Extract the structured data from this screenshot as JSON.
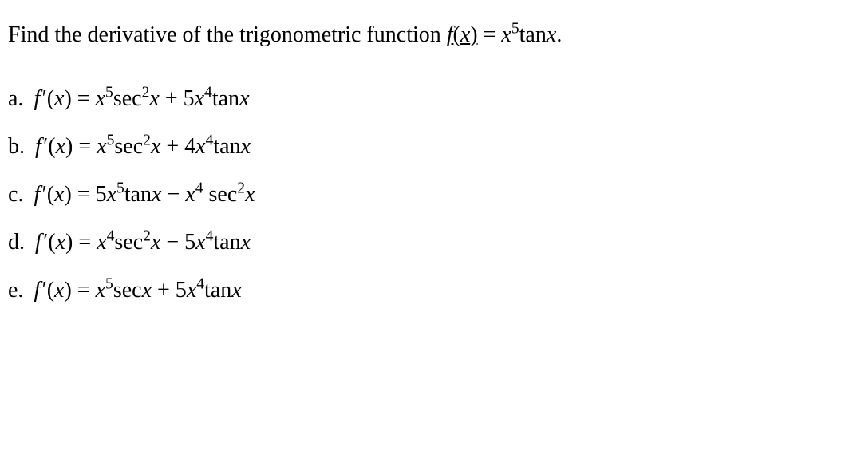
{
  "question": {
    "prefix": "Find the derivative of the trigonometric function ",
    "func_html": "<span class='underline'><span class='math'>f</span>(<span class='math'>x</span>)</span> = <span class='math'>x</span><sup>5</sup>tan<span class='math'>x</span>",
    "suffix": "."
  },
  "options": [
    {
      "label": "a.",
      "expr_html": "<span class='math'>f&#8202;</span>&prime;(<span class='math'>x</span>) = <span class='math'>x</span><sup>5</sup>sec<sup>2</sup><span class='math'>x</span> + 5<span class='math'>x</span><sup>4</sup>tan<span class='math'>x</span>"
    },
    {
      "label": "b.",
      "expr_html": "<span class='math'>f&#8202;</span>&prime;(<span class='math'>x</span>) = <span class='math'>x</span><sup>5</sup>sec<sup>2</sup><span class='math'>x</span> + 4<span class='math'>x</span><sup>4</sup>tan<span class='math'>x</span>"
    },
    {
      "label": "c.",
      "expr_html": "<span class='math'>f&#8202;</span>&prime;(<span class='math'>x</span>) = 5<span class='math'>x</span><sup>5</sup>tan<span class='math'>x</span> &minus; <span class='math'>x</span><sup>4</sup> sec<sup>2</sup><span class='math'>x</span>"
    },
    {
      "label": "d.",
      "expr_html": "<span class='math'>f&#8202;</span>&prime;(<span class='math'>x</span>) = <span class='math'>x</span><sup>4</sup>sec<sup>2</sup><span class='math'>x</span> &minus; 5<span class='math'>x</span><sup>4</sup>tan<span class='math'>x</span>"
    },
    {
      "label": "e.",
      "expr_html": "<span class='math'>f&#8202;</span>&prime;(<span class='math'>x</span>) = <span class='math'>x</span><sup>5</sup>sec<span class='math'>x</span> + 5<span class='math'>x</span><sup>4</sup>tan<span class='math'>x</span>"
    }
  ],
  "style": {
    "font_family": "Times New Roman",
    "font_size_pt": 21,
    "text_color": "#000000",
    "background_color": "#ffffff"
  }
}
